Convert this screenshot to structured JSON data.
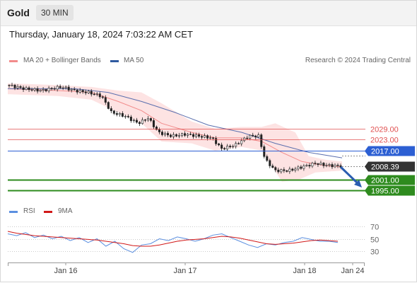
{
  "header": {
    "title": "Gold",
    "timeframe": "30 MIN"
  },
  "datetime": "Thursday, January 18, 2024 7:03:22 AM CET",
  "legend": {
    "ma20_bollinger": "MA 20 + Bollinger Bands",
    "ma50": "MA 50",
    "rsi": "RSI",
    "ma9": "9MA",
    "credit": "Research © 2024 Trading Central"
  },
  "colors": {
    "bollinger_fill": "#fde3e3",
    "ma20": "#f28b8b",
    "ma50": "#5b6fae",
    "resistance": "#e05050",
    "pivot": "#2c5fd3",
    "support": "#2e8b1e",
    "current": "#333333",
    "rsi": "#5b8fe0",
    "rsi_ma": "#d11818",
    "arrow": "#2a5db0",
    "candle": "#222222"
  },
  "chart_data": [
    {
      "type": "line",
      "title": "Gold",
      "subtitle": "30 MIN",
      "y_range": [
        1993,
        2052
      ],
      "x_ticks": [
        "Jan 16",
        "Jan 17",
        "Jan 18",
        "Jan 24"
      ],
      "price_path": [
        {
          "t": 0.0,
          "p": 2053
        },
        {
          "t": 0.05,
          "p": 2051
        },
        {
          "t": 0.1,
          "p": 2050
        },
        {
          "t": 0.16,
          "p": 2052
        },
        {
          "t": 0.2,
          "p": 2050
        },
        {
          "t": 0.24,
          "p": 2049
        },
        {
          "t": 0.28,
          "p": 2047
        },
        {
          "t": 0.31,
          "p": 2038
        },
        {
          "t": 0.35,
          "p": 2036
        },
        {
          "t": 0.39,
          "p": 2032
        },
        {
          "t": 0.42,
          "p": 2035
        },
        {
          "t": 0.45,
          "p": 2027
        },
        {
          "t": 0.49,
          "p": 2025
        },
        {
          "t": 0.53,
          "p": 2026
        },
        {
          "t": 0.57,
          "p": 2025
        },
        {
          "t": 0.61,
          "p": 2024
        },
        {
          "t": 0.64,
          "p": 2018
        },
        {
          "t": 0.68,
          "p": 2020
        },
        {
          "t": 0.72,
          "p": 2025
        },
        {
          "t": 0.75,
          "p": 2025
        },
        {
          "t": 0.77,
          "p": 2012
        },
        {
          "t": 0.8,
          "p": 2006
        },
        {
          "t": 0.84,
          "p": 2006
        },
        {
          "t": 0.88,
          "p": 2008
        },
        {
          "t": 0.92,
          "p": 2010
        },
        {
          "t": 0.95,
          "p": 2009
        },
        {
          "t": 1.0,
          "p": 2008.4
        }
      ],
      "ma50_path": [
        {
          "t": 0.0,
          "p": 2051
        },
        {
          "t": 0.2,
          "p": 2051
        },
        {
          "t": 0.3,
          "p": 2049
        },
        {
          "t": 0.4,
          "p": 2044
        },
        {
          "t": 0.5,
          "p": 2038
        },
        {
          "t": 0.6,
          "p": 2031
        },
        {
          "t": 0.7,
          "p": 2027
        },
        {
          "t": 0.8,
          "p": 2021
        },
        {
          "t": 0.9,
          "p": 2016
        },
        {
          "t": 1.0,
          "p": 2013
        }
      ],
      "bollinger_upper_path": [
        {
          "t": 0.0,
          "p": 2054
        },
        {
          "t": 0.15,
          "p": 2053
        },
        {
          "t": 0.25,
          "p": 2052
        },
        {
          "t": 0.33,
          "p": 2050
        },
        {
          "t": 0.4,
          "p": 2049
        },
        {
          "t": 0.46,
          "p": 2043
        },
        {
          "t": 0.55,
          "p": 2033
        },
        {
          "t": 0.62,
          "p": 2029
        },
        {
          "t": 0.7,
          "p": 2030
        },
        {
          "t": 0.76,
          "p": 2030
        },
        {
          "t": 0.8,
          "p": 2032
        },
        {
          "t": 0.86,
          "p": 2027
        },
        {
          "t": 0.9,
          "p": 2014
        },
        {
          "t": 0.95,
          "p": 2012
        },
        {
          "t": 1.0,
          "p": 2011
        }
      ],
      "bollinger_lower_path": [
        {
          "t": 0.0,
          "p": 2048
        },
        {
          "t": 0.15,
          "p": 2047
        },
        {
          "t": 0.25,
          "p": 2045
        },
        {
          "t": 0.33,
          "p": 2038
        },
        {
          "t": 0.4,
          "p": 2032
        },
        {
          "t": 0.46,
          "p": 2022
        },
        {
          "t": 0.55,
          "p": 2021
        },
        {
          "t": 0.62,
          "p": 2017
        },
        {
          "t": 0.7,
          "p": 2019
        },
        {
          "t": 0.76,
          "p": 2017
        },
        {
          "t": 0.82,
          "p": 2000
        },
        {
          "t": 0.87,
          "p": 2001
        },
        {
          "t": 0.92,
          "p": 2005
        },
        {
          "t": 1.0,
          "p": 2006
        }
      ],
      "ma20_path": [
        {
          "t": 0.0,
          "p": 2051
        },
        {
          "t": 0.15,
          "p": 2050
        },
        {
          "t": 0.25,
          "p": 2049
        },
        {
          "t": 0.33,
          "p": 2044
        },
        {
          "t": 0.4,
          "p": 2039
        },
        {
          "t": 0.46,
          "p": 2032
        },
        {
          "t": 0.55,
          "p": 2027
        },
        {
          "t": 0.62,
          "p": 2024
        },
        {
          "t": 0.7,
          "p": 2024
        },
        {
          "t": 0.76,
          "p": 2022
        },
        {
          "t": 0.82,
          "p": 2016
        },
        {
          "t": 0.88,
          "p": 2011
        },
        {
          "t": 0.94,
          "p": 2009
        },
        {
          "t": 1.0,
          "p": 2008
        }
      ],
      "levels": [
        {
          "name": "resistance-2",
          "value": 2029.0,
          "label": "2029.00",
          "kind": "resistance"
        },
        {
          "name": "resistance-1",
          "value": 2023.0,
          "label": "2023.00",
          "kind": "resistance"
        },
        {
          "name": "pivot",
          "value": 2017.0,
          "label": "2017.00",
          "kind": "pivot"
        },
        {
          "name": "current-price",
          "value": 2008.39,
          "label": "2008.39",
          "kind": "current"
        },
        {
          "name": "support-1",
          "value": 2001.0,
          "label": "2001.00",
          "kind": "support"
        },
        {
          "name": "support-2",
          "value": 1995.0,
          "label": "1995.00",
          "kind": "support"
        }
      ],
      "forecast_arrow": {
        "from": 2008.0,
        "to": 1997.5
      }
    },
    {
      "type": "line",
      "title": "RSI",
      "y_range": [
        20,
        80
      ],
      "y_ticks": [
        70,
        50,
        30
      ],
      "series": [
        {
          "name": "RSI",
          "values": [
            58,
            55,
            60,
            52,
            56,
            50,
            54,
            47,
            52,
            44,
            50,
            38,
            46,
            34,
            28,
            40,
            42,
            50,
            47,
            53,
            50,
            46,
            50,
            56,
            58,
            52,
            46,
            40,
            36,
            42,
            40,
            44,
            46,
            52,
            49,
            46,
            46,
            44
          ]
        },
        {
          "name": "9MA",
          "values": [
            62,
            59,
            57,
            55,
            54,
            53,
            52,
            51,
            50,
            49,
            48,
            46,
            44,
            42,
            39,
            38,
            38,
            40,
            43,
            46,
            48,
            49,
            50,
            52,
            54,
            53,
            51,
            48,
            45,
            42,
            41,
            42,
            43,
            45,
            47,
            48,
            47,
            46
          ]
        }
      ]
    }
  ]
}
